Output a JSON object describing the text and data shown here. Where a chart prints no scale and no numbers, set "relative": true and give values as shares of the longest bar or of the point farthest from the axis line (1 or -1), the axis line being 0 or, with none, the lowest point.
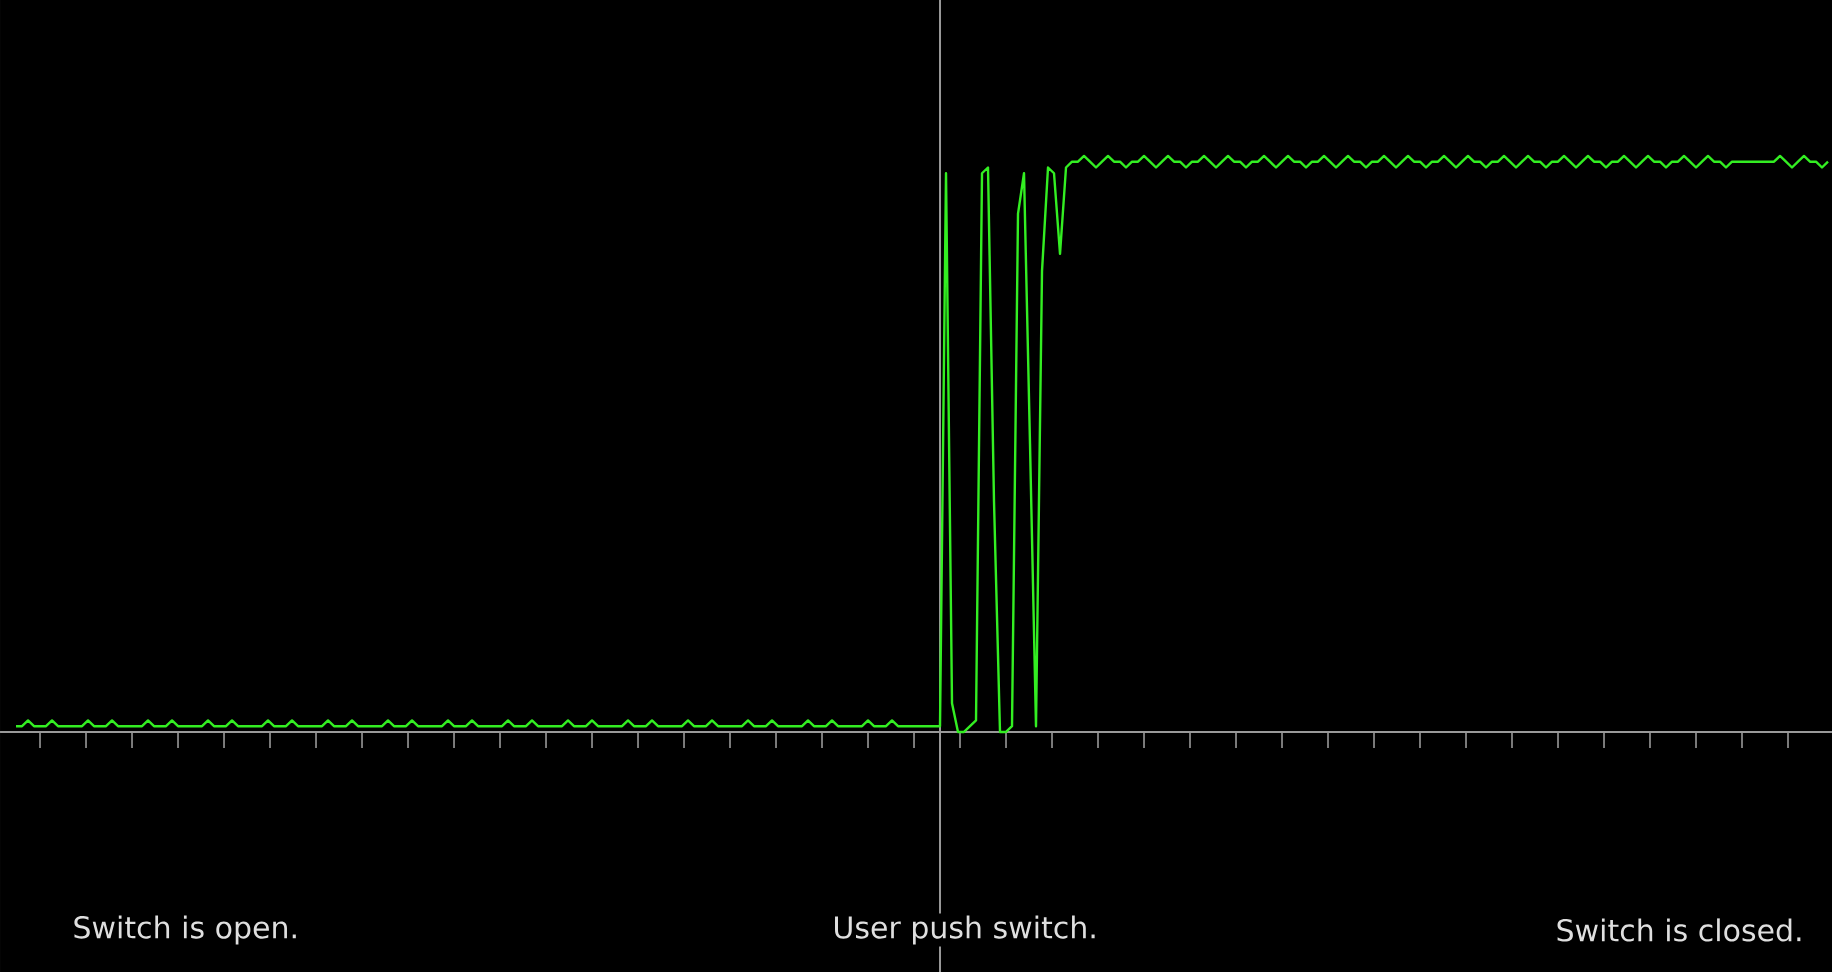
{
  "chart_data": {
    "type": "line",
    "relative": true,
    "color": "#33ee22",
    "marker": "none",
    "line_style": "solid",
    "categories": [
      null,
      null,
      null,
      null,
      null,
      null,
      null,
      null,
      null,
      null,
      null,
      null,
      null,
      null,
      null,
      null,
      null,
      null,
      null,
      null,
      null,
      null,
      null,
      null,
      null,
      null,
      null,
      null,
      null,
      null,
      null,
      null,
      null,
      null,
      null,
      null,
      null,
      null,
      null,
      null,
      null,
      null,
      null,
      null,
      null,
      null,
      null,
      null,
      null,
      null,
      null,
      null,
      null,
      null,
      null,
      null,
      null,
      null,
      null,
      null,
      null,
      null,
      null,
      null,
      null,
      null,
      null,
      null,
      null,
      null,
      null,
      null,
      null,
      null,
      null,
      null,
      null,
      null,
      null,
      null,
      null,
      null,
      null,
      null,
      null,
      null,
      null,
      null,
      null,
      null,
      null,
      null,
      null,
      null,
      null,
      null,
      null,
      null,
      null,
      null,
      null,
      null,
      null,
      null,
      null,
      null,
      null,
      null,
      null,
      null,
      null,
      null,
      null,
      null,
      null,
      null,
      null,
      null,
      null,
      null,
      null,
      null,
      null,
      null,
      null,
      null,
      null,
      null,
      null,
      null,
      null,
      null,
      null,
      null,
      null,
      null,
      null,
      null,
      null,
      null,
      null,
      null,
      null,
      null,
      null,
      null,
      null,
      null,
      null,
      null,
      null,
      null,
      null,
      null,
      null,
      null,
      null,
      null,
      null,
      null,
      null,
      null,
      null,
      null,
      null,
      null,
      null,
      null,
      null,
      null,
      null,
      null,
      null,
      null,
      null,
      null,
      null,
      null,
      null,
      null,
      null,
      null,
      null,
      null,
      null,
      null,
      null,
      null,
      null,
      null,
      null,
      null,
      null,
      null,
      null,
      null,
      null,
      null,
      null,
      null,
      null,
      null,
      null,
      null,
      null,
      null,
      null,
      null,
      null,
      null,
      null,
      null,
      null,
      null,
      null,
      null,
      null,
      null,
      null,
      null,
      null,
      null,
      null,
      null,
      null,
      null,
      null,
      null,
      null,
      null,
      null,
      null,
      null,
      null,
      null,
      null,
      null,
      null,
      null,
      null,
      null,
      null,
      null,
      null,
      null,
      null,
      null,
      null,
      null,
      null,
      null,
      null,
      null,
      null,
      null,
      null,
      null,
      null,
      null,
      null,
      null,
      null,
      null,
      null,
      null,
      null,
      null,
      null,
      null,
      null,
      null,
      null,
      null,
      null,
      null,
      null,
      null,
      null,
      null,
      null,
      null,
      null,
      null,
      null,
      null,
      null,
      null,
      null,
      null,
      null,
      null,
      null,
      null,
      null,
      null,
      null,
      null,
      null,
      null,
      null,
      null,
      null,
      null
    ],
    "values": [
      0.01,
      0.01,
      0.02,
      0.01,
      0.01,
      0.01,
      0.02,
      0.01,
      0.01,
      0.01,
      0.01,
      0.01,
      0.02,
      0.01,
      0.01,
      0.01,
      0.02,
      0.01,
      0.01,
      0.01,
      0.01,
      0.01,
      0.02,
      0.01,
      0.01,
      0.01,
      0.02,
      0.01,
      0.01,
      0.01,
      0.01,
      0.01,
      0.02,
      0.01,
      0.01,
      0.01,
      0.02,
      0.01,
      0.01,
      0.01,
      0.01,
      0.01,
      0.02,
      0.01,
      0.01,
      0.01,
      0.02,
      0.01,
      0.01,
      0.01,
      0.01,
      0.01,
      0.02,
      0.01,
      0.01,
      0.01,
      0.02,
      0.01,
      0.01,
      0.01,
      0.01,
      0.01,
      0.02,
      0.01,
      0.01,
      0.01,
      0.02,
      0.01,
      0.01,
      0.01,
      0.01,
      0.01,
      0.02,
      0.01,
      0.01,
      0.01,
      0.02,
      0.01,
      0.01,
      0.01,
      0.01,
      0.01,
      0.02,
      0.01,
      0.01,
      0.01,
      0.02,
      0.01,
      0.01,
      0.01,
      0.01,
      0.01,
      0.02,
      0.01,
      0.01,
      0.01,
      0.02,
      0.01,
      0.01,
      0.01,
      0.01,
      0.01,
      0.02,
      0.01,
      0.01,
      0.01,
      0.02,
      0.01,
      0.01,
      0.01,
      0.01,
      0.01,
      0.02,
      0.01,
      0.01,
      0.01,
      0.02,
      0.01,
      0.01,
      0.01,
      0.01,
      0.01,
      0.02,
      0.01,
      0.01,
      0.01,
      0.02,
      0.01,
      0.01,
      0.01,
      0.01,
      0.01,
      0.02,
      0.01,
      0.01,
      0.01,
      0.02,
      0.01,
      0.01,
      0.01,
      0.01,
      0.01,
      0.02,
      0.01,
      0.01,
      0.01,
      0.02,
      0.01,
      0.01,
      0.01,
      0.01,
      0.01,
      0.01,
      0.01,
      0.01,
      0.97,
      0.05,
      0,
      0,
      0.01,
      0.02,
      0.97,
      0.98,
      0.4,
      0,
      0,
      0.01,
      0.9,
      0.97,
      0.5,
      0.01,
      0.8,
      0.98,
      0.97,
      0.83,
      0.98,
      0.99,
      0.99,
      1,
      0.99,
      0.98,
      0.99,
      1,
      0.99,
      0.99,
      0.98,
      0.99,
      0.99,
      1,
      0.99,
      0.98,
      0.99,
      1,
      0.99,
      0.99,
      0.98,
      0.99,
      0.99,
      1,
      0.99,
      0.98,
      0.99,
      1,
      0.99,
      0.99,
      0.98,
      0.99,
      0.99,
      1,
      0.99,
      0.98,
      0.99,
      1,
      0.99,
      0.99,
      0.98,
      0.99,
      0.99,
      1,
      0.99,
      0.98,
      0.99,
      1,
      0.99,
      0.99,
      0.98,
      0.99,
      0.99,
      1,
      0.99,
      0.98,
      0.99,
      1,
      0.99,
      0.99,
      0.98,
      0.99,
      0.99,
      1,
      0.99,
      0.98,
      0.99,
      1,
      0.99,
      0.99,
      0.98,
      0.99,
      0.99,
      1,
      0.99,
      0.98,
      0.99,
      1,
      0.99,
      0.99,
      0.98,
      0.99,
      0.99,
      1,
      0.99,
      0.98,
      0.99,
      1,
      0.99,
      0.99,
      0.98,
      0.99,
      0.99,
      1,
      0.99,
      0.98,
      0.99,
      1,
      0.99,
      0.99,
      0.98,
      0.99,
      0.99,
      1,
      0.99,
      0.98,
      0.99,
      1,
      0.99,
      0.99,
      0.98,
      0.99,
      0.99,
      0.99,
      0.99,
      0.99,
      0.99,
      0.99,
      0.99,
      1,
      0.99,
      0.98,
      0.99,
      1,
      0.99,
      0.99,
      0.98,
      0.99
    ],
    "annotations": [
      "Switch is open.",
      "User push switch.",
      "Switch is closed."
    ]
  }
}
